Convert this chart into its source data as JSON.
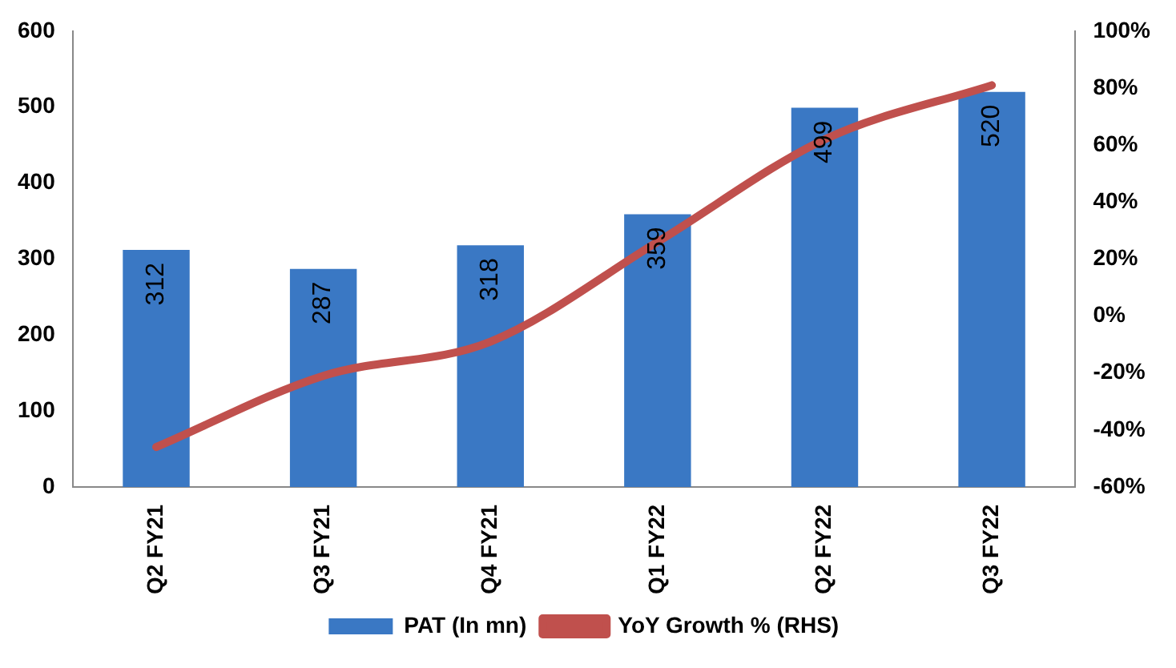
{
  "chart_data": {
    "type": "bar",
    "categories": [
      "Q2 FY21",
      "Q3 FY21",
      "Q4 FY21",
      "Q1 FY22",
      "Q2 FY22",
      "Q3 FY22"
    ],
    "series": [
      {
        "name": "PAT (In mn)",
        "color": "#3a78c4",
        "values": [
          312,
          287,
          318,
          359,
          499,
          520
        ],
        "value_labels": [
          "312",
          "287",
          "318",
          "359",
          "499",
          "520"
        ]
      },
      {
        "name": "YoY Growth % (RHS)",
        "type": "line",
        "axis": "y2",
        "color": "#c0504d",
        "values": [
          -46,
          -21,
          -9,
          26,
          62,
          81
        ]
      }
    ],
    "ylim": [
      0,
      600
    ],
    "yticks": [
      0,
      100,
      200,
      300,
      400,
      500,
      600
    ],
    "y2lim": [
      -60,
      100
    ],
    "y2ticks": [
      {
        "value": -60,
        "label": "-60%"
      },
      {
        "value": -40,
        "label": "-40%"
      },
      {
        "value": -20,
        "label": "-20%"
      },
      {
        "value": 0,
        "label": "0%"
      },
      {
        "value": 20,
        "label": "20%"
      },
      {
        "value": 40,
        "label": "40%"
      },
      {
        "value": 60,
        "label": "60%"
      },
      {
        "value": 80,
        "label": "80%"
      },
      {
        "value": 100,
        "label": "100%"
      }
    ],
    "grid": false,
    "legend": "bottom",
    "marker": "none"
  }
}
